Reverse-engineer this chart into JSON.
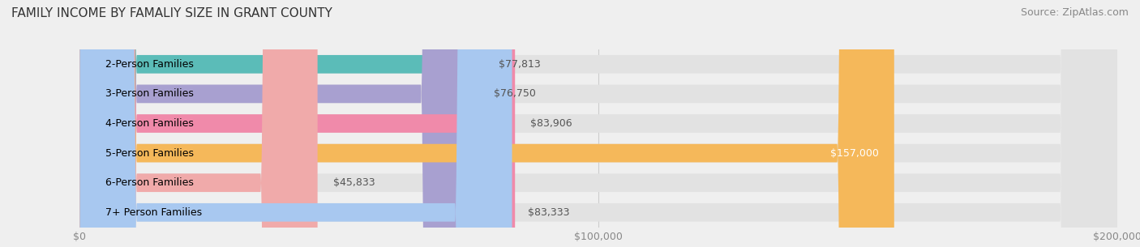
{
  "title": "FAMILY INCOME BY FAMALIY SIZE IN GRANT COUNTY",
  "source": "Source: ZipAtlas.com",
  "categories": [
    "2-Person Families",
    "3-Person Families",
    "4-Person Families",
    "5-Person Families",
    "6-Person Families",
    "7+ Person Families"
  ],
  "values": [
    77813,
    76750,
    83906,
    157000,
    45833,
    83333
  ],
  "bar_colors": [
    "#5bbcb8",
    "#a8a0d0",
    "#f08aaa",
    "#f5b85a",
    "#f0aaaa",
    "#a8c8f0"
  ],
  "value_labels": [
    "$77,813",
    "$76,750",
    "$83,906",
    "$157,000",
    "$45,833",
    "$83,333"
  ],
  "label_inside": [
    false,
    false,
    false,
    true,
    false,
    false
  ],
  "xlim": [
    0,
    200000
  ],
  "xticks": [
    0,
    100000,
    200000
  ],
  "xticklabels": [
    "$0",
    "$100,000",
    "$200,000"
  ],
  "background_color": "#efefef",
  "bar_bg_color": "#e2e2e2",
  "title_fontsize": 11,
  "source_fontsize": 9,
  "label_fontsize": 9,
  "tick_fontsize": 9
}
